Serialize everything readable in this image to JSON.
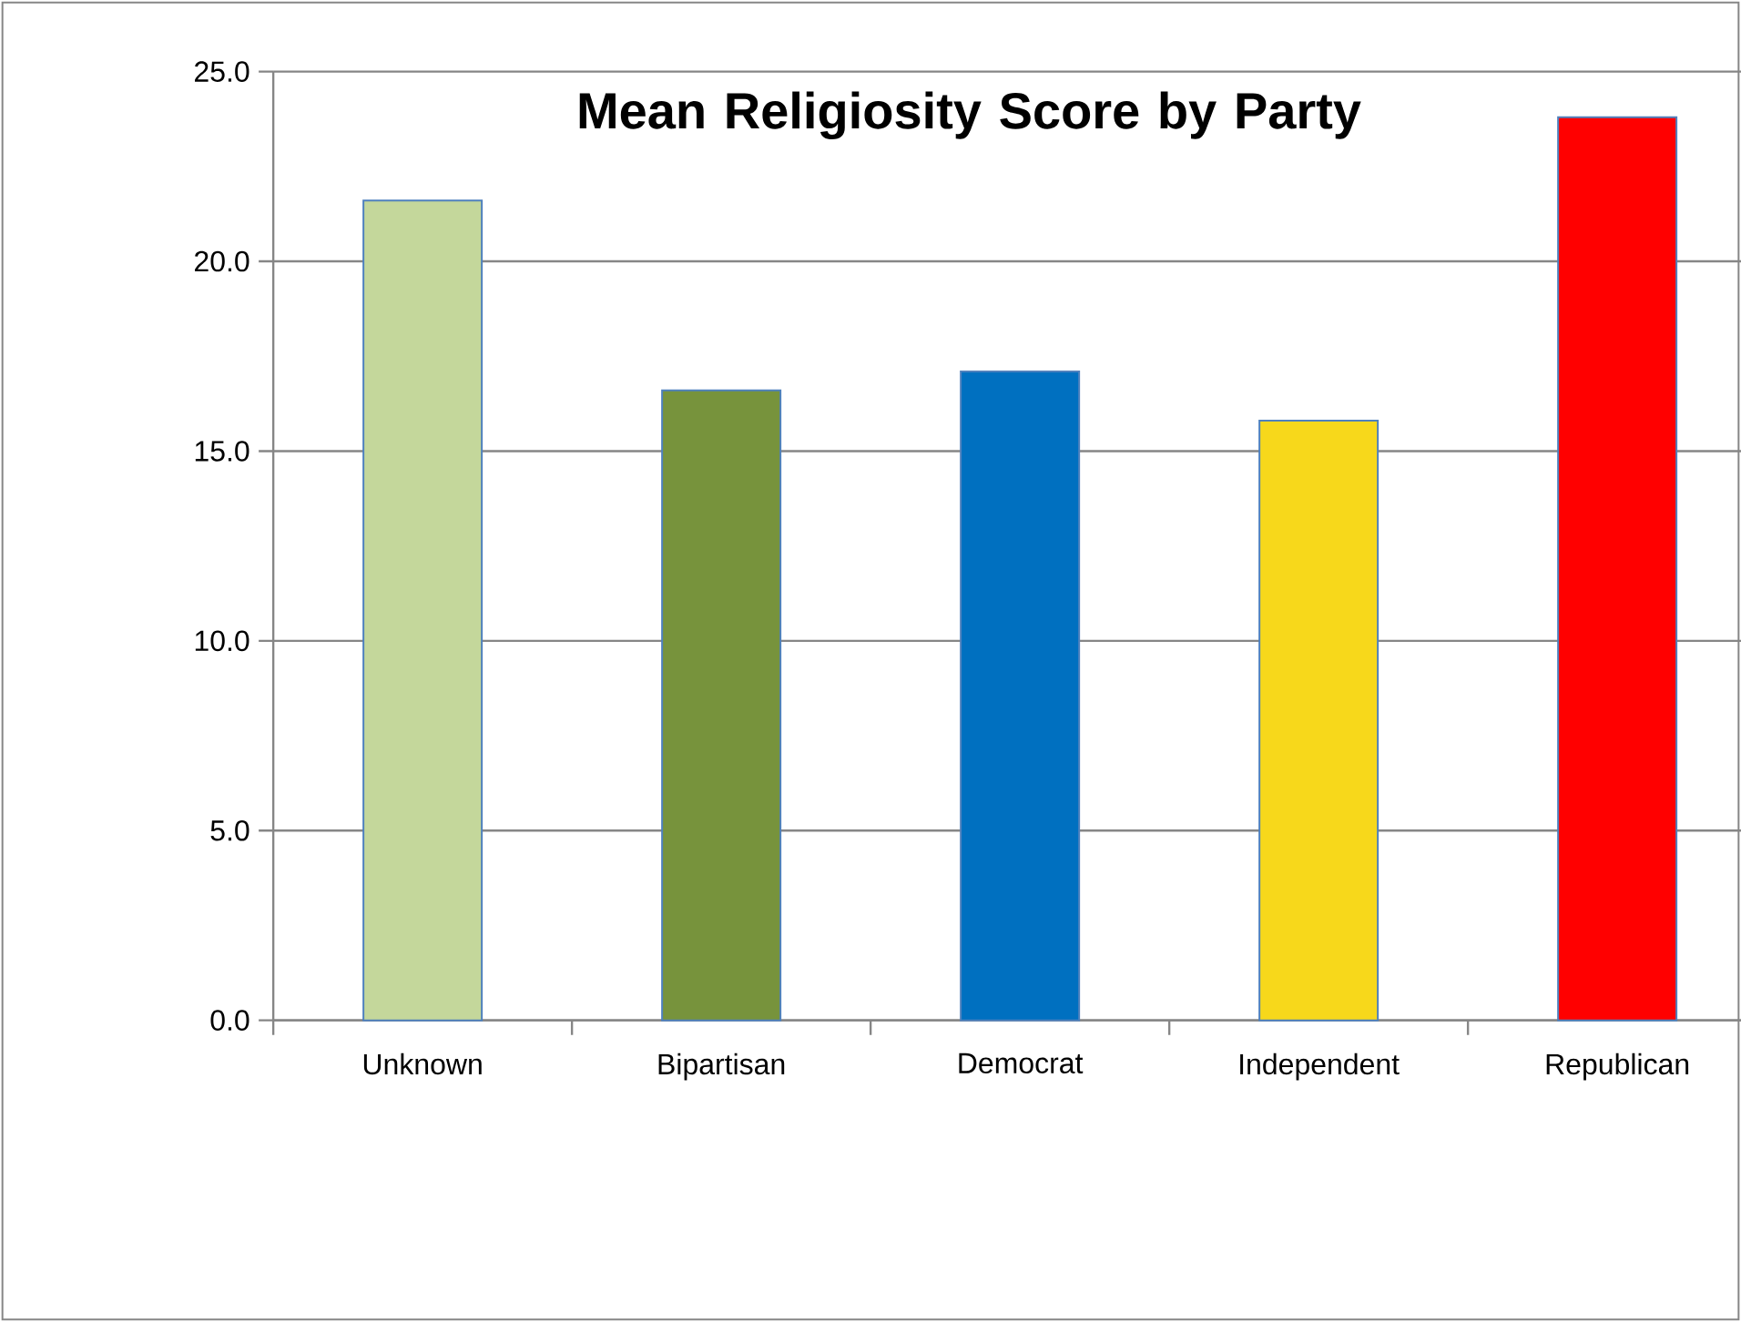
{
  "chart_data": {
    "type": "bar",
    "title": "Mean Religiosity Score by Party",
    "categories": [
      "Unknown",
      "Bipartisan",
      "Democrat",
      "Independent",
      "Republican"
    ],
    "values": [
      21.6,
      16.6,
      17.1,
      15.8,
      23.8
    ],
    "colors": [
      "#c4d79b",
      "#77933c",
      "#0070c0",
      "#f7d81b",
      "#ff0000"
    ],
    "ylim": [
      0,
      25
    ],
    "yticks": [
      {
        "value": 0,
        "label": "0.0"
      },
      {
        "value": 5,
        "label": "5.0"
      },
      {
        "value": 10,
        "label": "10.0"
      },
      {
        "value": 15,
        "label": "15.0"
      },
      {
        "value": 20,
        "label": "20.0"
      },
      {
        "value": 25,
        "label": "25.0"
      }
    ],
    "grid": "y"
  }
}
